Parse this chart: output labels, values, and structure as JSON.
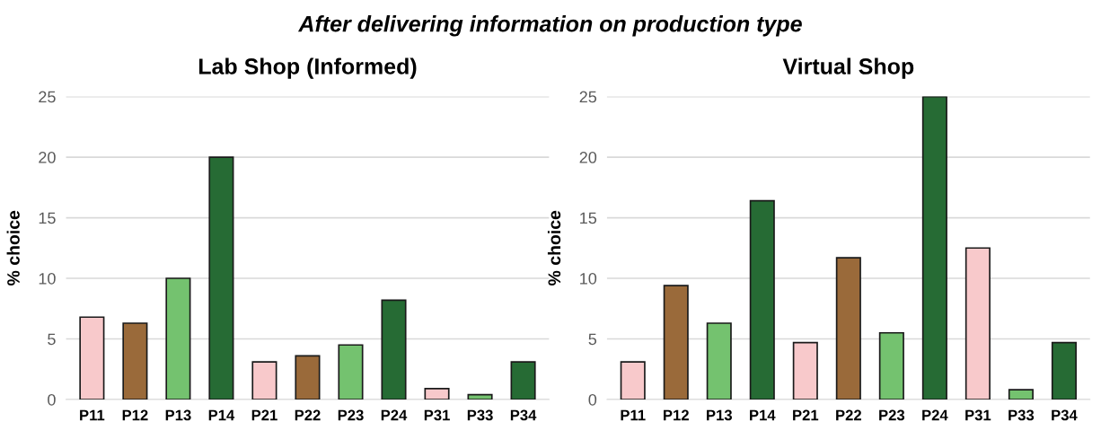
{
  "chart_data": [
    {
      "type": "bar",
      "title": "Lab Shop (Informed)",
      "ylabel": "% choice",
      "annotations": [
        "After delivering information on production type"
      ],
      "categories": [
        "P11",
        "P12",
        "P13",
        "P14",
        "P21",
        "P22",
        "P23",
        "P24",
        "P31",
        "P33",
        "P34"
      ],
      "values": [
        6.8,
        6.3,
        10,
        20,
        3.1,
        3.6,
        4.5,
        8.2,
        0.9,
        0.4,
        3.1
      ],
      "colors": [
        "#f8c9cb",
        "#9a6a3a",
        "#74c26f",
        "#266b34",
        "#f8c9cb",
        "#9a6a3a",
        "#74c26f",
        "#266b34",
        "#f8c9cb",
        "#74c26f",
        "#266b34"
      ],
      "ylim": [
        0,
        25
      ],
      "yticks": [
        0,
        5,
        10,
        15,
        20,
        25
      ],
      "grid": "y"
    },
    {
      "type": "bar",
      "title": "Virtual Shop",
      "ylabel": "% choice",
      "categories": [
        "P11",
        "P12",
        "P13",
        "P14",
        "P21",
        "P22",
        "P23",
        "P24",
        "P31",
        "P33",
        "P34"
      ],
      "values": [
        3.1,
        9.4,
        6.3,
        16.4,
        4.7,
        11.7,
        5.5,
        25,
        12.5,
        0.8,
        4.7
      ],
      "colors": [
        "#f8c9cb",
        "#9a6a3a",
        "#74c26f",
        "#266b34",
        "#f8c9cb",
        "#9a6a3a",
        "#74c26f",
        "#266b34",
        "#f8c9cb",
        "#74c26f",
        "#266b34"
      ],
      "ylim": [
        0,
        25
      ],
      "yticks": [
        0,
        5,
        10,
        15,
        20,
        25
      ],
      "grid": "y"
    }
  ]
}
